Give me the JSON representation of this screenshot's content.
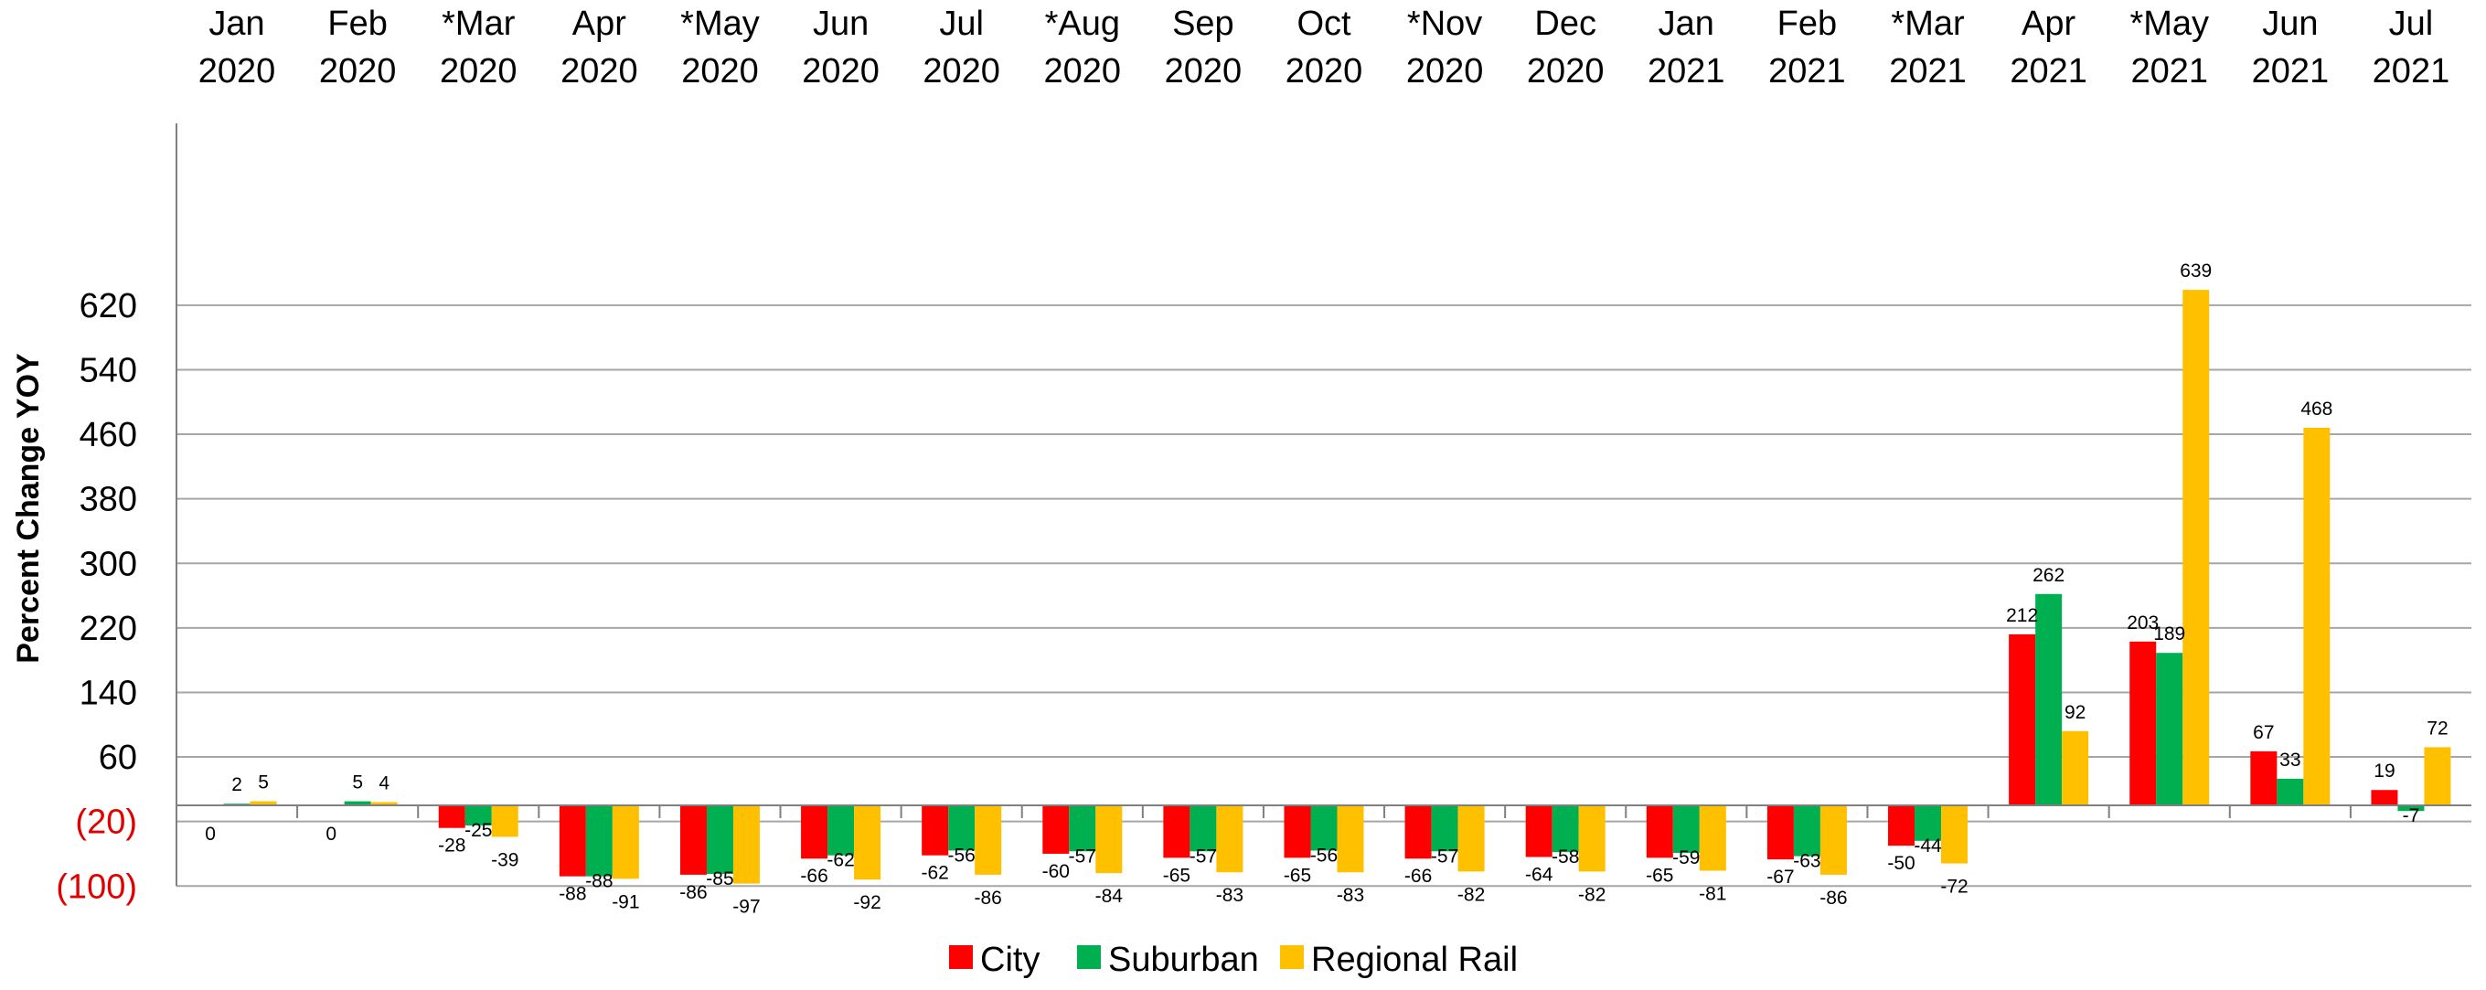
{
  "chart_data": {
    "type": "bar",
    "title": "",
    "xlabel": "",
    "ylabel": "Percent Change YOY",
    "ylim": [
      -100,
      660
    ],
    "yticks": [
      {
        "value": -100,
        "label": "(100)"
      },
      {
        "value": -20,
        "label": "(20)"
      },
      {
        "value": 60,
        "label": "60"
      },
      {
        "value": 140,
        "label": "140"
      },
      {
        "value": 220,
        "label": "220"
      },
      {
        "value": 300,
        "label": "300"
      },
      {
        "value": 380,
        "label": "380"
      },
      {
        "value": 460,
        "label": "460"
      },
      {
        "value": 540,
        "label": "540"
      },
      {
        "value": 620,
        "label": "620"
      }
    ],
    "categories": [
      [
        "Jan",
        "2020"
      ],
      [
        "Feb",
        "2020"
      ],
      [
        "*Mar",
        "2020"
      ],
      [
        "Apr",
        "2020"
      ],
      [
        "*May",
        "2020"
      ],
      [
        "Jun",
        "2020"
      ],
      [
        "Jul",
        "2020"
      ],
      [
        "*Aug",
        "2020"
      ],
      [
        "Sep",
        "2020"
      ],
      [
        "Oct",
        "2020"
      ],
      [
        "*Nov",
        "2020"
      ],
      [
        "Dec",
        "2020"
      ],
      [
        "Jan",
        "2021"
      ],
      [
        "Feb",
        "2021"
      ],
      [
        "*Mar",
        "2021"
      ],
      [
        "Apr",
        "2021"
      ],
      [
        "*May",
        "2021"
      ],
      [
        "Jun",
        "2021"
      ],
      [
        "Jul",
        "2021"
      ]
    ],
    "series": [
      {
        "name": "City",
        "color": "#ff0000",
        "values": [
          0,
          0,
          -28,
          -88,
          -86,
          -66,
          -62,
          -60,
          -65,
          -65,
          -66,
          -64,
          -65,
          -67,
          -50,
          212,
          203,
          67,
          19
        ]
      },
      {
        "name": "Suburban",
        "color": "#00b050",
        "values": [
          2,
          5,
          -25,
          -88,
          -85,
          -62,
          -56,
          -57,
          -57,
          -56,
          -57,
          -58,
          -59,
          -63,
          -44,
          262,
          189,
          33,
          -7
        ]
      },
      {
        "name": "Regional Rail",
        "color": "#ffc000",
        "values": [
          5,
          4,
          -39,
          -91,
          -97,
          -92,
          -86,
          -84,
          -83,
          -83,
          -82,
          -82,
          -81,
          -86,
          -72,
          92,
          639,
          468,
          72
        ]
      }
    ],
    "series_labels_shown": [
      [
        true,
        true,
        true,
        true,
        true,
        true,
        true,
        true,
        true,
        true,
        true,
        true,
        true,
        true,
        true,
        true,
        true,
        true,
        true
      ],
      [
        true,
        true,
        true,
        true,
        true,
        true,
        true,
        true,
        true,
        true,
        true,
        true,
        true,
        true,
        true,
        true,
        true,
        true,
        true
      ],
      [
        true,
        true,
        true,
        true,
        true,
        true,
        true,
        true,
        true,
        true,
        true,
        true,
        true,
        true,
        true,
        true,
        true,
        true,
        true
      ]
    ],
    "grid": true,
    "legend_position": "bottom"
  }
}
